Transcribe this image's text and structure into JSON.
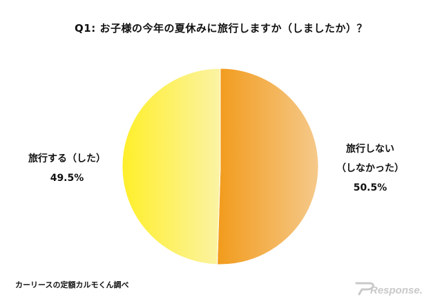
{
  "chart_data": {
    "type": "pie",
    "title": "Q1: お子様の今年の夏休みに旅行しますか（しましたか）？",
    "slices": [
      {
        "label": "旅行しない\n（しなかった）",
        "value": 50.5,
        "value_label": "50.5%",
        "color_start": "#f29b1c",
        "color_end": "#f5c98a"
      },
      {
        "label": "旅行する（した）",
        "value": 49.5,
        "value_label": "49.5%",
        "color_start": "#ffef2a",
        "color_end": "#fbf3a4"
      }
    ],
    "start_angle_deg": 0,
    "direction": "clockwise",
    "legend": "none"
  },
  "footer": {
    "source": "カーリースの定額カルモくん調べ",
    "watermark": "Response."
  }
}
